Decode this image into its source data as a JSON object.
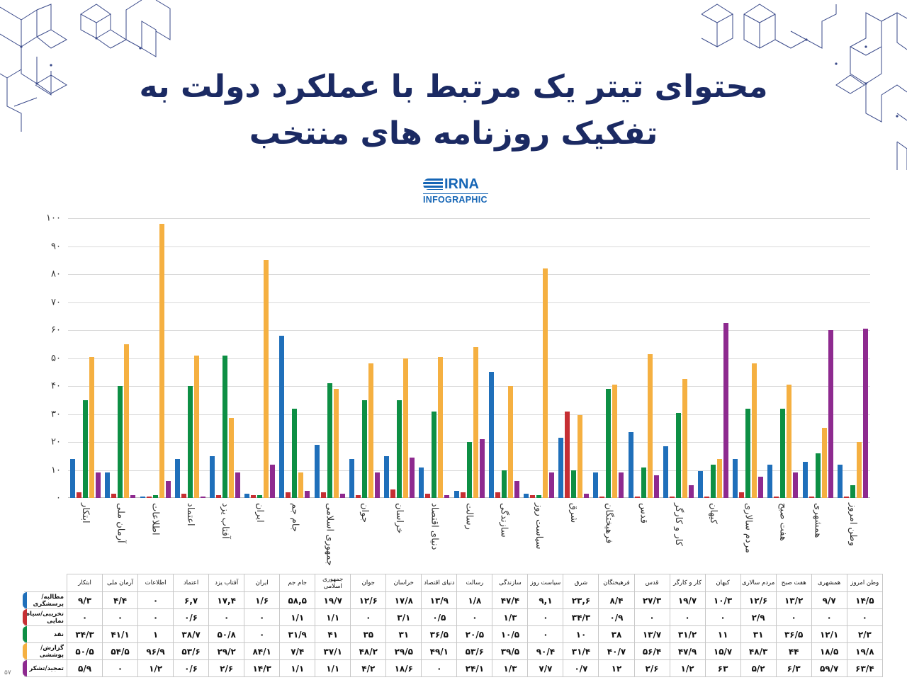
{
  "header": {
    "title_line1": "محتوای تیتر یک مرتبط با عملکرد دولت به",
    "title_line2": "تفکیک روزنامه های منتخب",
    "logo_brand": "IRNA",
    "logo_sub": "INFOGRAPHIC"
  },
  "colors": {
    "blue": "#1f6fba",
    "red": "#c62f33",
    "green": "#0d8f44",
    "orange": "#f5b041",
    "purple": "#8e2a8f",
    "title": "#1b2a63"
  },
  "chart_data": {
    "type": "bar",
    "title": "محتوای تیتر یک مرتبط با عملکرد دولت به تفکیک روزنامه های منتخب",
    "xlabel": "",
    "ylabel": "",
    "ylim": [
      0,
      100
    ],
    "yticks": [
      "۰",
      "۱۰",
      "۲۰",
      "۳۰",
      "۴۰",
      "۵۰",
      "۶۰",
      "۷۰",
      "۸۰",
      "۹۰",
      "۱۰۰"
    ],
    "grid": true,
    "legend_position": "table-row-markers",
    "categories": [
      "ابتکار",
      "آرمان ملی",
      "اطلاعات",
      "اعتماد",
      "آفتاب یزد",
      "ایران",
      "جام جم",
      "جمهوری اسلامی",
      "جوان",
      "خراسان",
      "دنیای اقتصاد",
      "رسالت",
      "سازندگی",
      "سیاست روز",
      "شرق",
      "فرهیختگان",
      "قدس",
      "کار و کارگر",
      "کیهان",
      "مردم سالاری",
      "هفت صبح",
      "همشهری",
      "وطن امروز"
    ],
    "series": [
      {
        "name": "مطالبه/پرسشگری",
        "color": "#1f6fba",
        "values": [
          14,
          9,
          0.5,
          14,
          15,
          1.5,
          58,
          19,
          14,
          15,
          11,
          2.5,
          45,
          1.5,
          21.5,
          9,
          23.5,
          18.5,
          9.5,
          14,
          12,
          13,
          12
        ]
      },
      {
        "name": "تخریبی/سیاه نمایی",
        "color": "#c62f33",
        "values": [
          2,
          1.5,
          0.5,
          1.5,
          1,
          1,
          2,
          2,
          1,
          3,
          1.5,
          2,
          2,
          1,
          31,
          0.5,
          0.5,
          0.5,
          0.5,
          2,
          0.5,
          0.5,
          0.5
        ]
      },
      {
        "name": "نقد",
        "color": "#0d8f44",
        "values": [
          35,
          40,
          1,
          40,
          51,
          1,
          32,
          41,
          35,
          35,
          31,
          20,
          10,
          1,
          10,
          39,
          11,
          30.5,
          12,
          32,
          32,
          16,
          4.5
        ]
      },
      {
        "name": "گزارش/پوششی",
        "color": "#f5b041",
        "values": [
          50.5,
          55,
          98,
          51,
          28.5,
          85,
          9,
          39,
          48,
          50,
          50.5,
          54,
          40,
          82,
          29.5,
          40.5,
          51.5,
          42.5,
          14,
          48,
          40.5,
          25,
          20
        ]
      },
      {
        "name": "تمجید/تشکر",
        "color": "#8e2a8f",
        "values": [
          9,
          1,
          6,
          0.5,
          9,
          12,
          2.5,
          1.5,
          9,
          14.5,
          1,
          21,
          6,
          9,
          1.5,
          9,
          8,
          4.5,
          62.5,
          7.5,
          9,
          60,
          60.5
        ]
      }
    ]
  },
  "table": {
    "headers_rtl": [
      "وطن امروز",
      "همشهری",
      "هفت صبح",
      "مردم سالاری",
      "کیهان",
      "کار و کارگر",
      "قدس",
      "فرهیختگان",
      "شرق",
      "سیاست روز",
      "سازندگی",
      "رسالت",
      "دنیای اقتصاد",
      "خراسان",
      "جوان",
      "جمهوری اسلامی",
      "جام جم",
      "ایران",
      "آفتاب یزد",
      "اعتماد",
      "اطلاعات",
      "آرمان ملی",
      "ابتکار"
    ],
    "rows": [
      {
        "label": "مطالبه/پرسشگری",
        "color": "#1f6fba",
        "values_ltr": [
          "۹/۳",
          "۴/۴",
          "۰",
          "۶,۷",
          "۱۷,۴",
          "۱/۶",
          "۵۸,۵",
          "۱۹/۷",
          "۱۲/۶",
          "۱۷/۸",
          "۱۳/۹",
          "۱/۸",
          "۴۷/۴",
          "۹,۱",
          "۲۳,۶",
          "۸/۴",
          "۲۷/۳",
          "۱۹/۷",
          "۱۰/۳",
          "۱۲/۶",
          "۱۳/۲",
          "۹/۷",
          "۱۴/۵"
        ]
      },
      {
        "label": "تخریبی/سیاه نمایی",
        "color": "#c62f33",
        "values_ltr": [
          "۰",
          "۰",
          "۰",
          "۰/۶",
          "۰",
          "۰",
          "۱/۱",
          "۱/۱",
          "۰",
          "۳/۱",
          "۰/۵",
          "۰",
          "۱/۳",
          "۰",
          "۳۴/۳",
          "۰/۹",
          "۰",
          "۰",
          "۰",
          "۲/۹",
          "۰",
          "۰",
          "۰"
        ]
      },
      {
        "label": "نقد",
        "color": "#0d8f44",
        "values_ltr": [
          "۳۴/۳",
          "۴۱/۱",
          "۱",
          "۳۸/۷",
          "۵۰/۸",
          "۰",
          "۳۱/۹",
          "۴۱",
          "۳۵",
          "۳۱",
          "۳۶/۵",
          "۲۰/۵",
          "۱۰/۵",
          "۰",
          "۱۰",
          "۳۸",
          "۱۳/۷",
          "۳۱/۲",
          "۱۱",
          "۳۱",
          "۳۶/۵",
          "۱۲/۱",
          "۲/۳"
        ]
      },
      {
        "label": "گزارش/پوششی",
        "color": "#f5b041",
        "values_ltr": [
          "۵۰/۵",
          "۵۴/۵",
          "۹۶/۹",
          "۵۳/۶",
          "۲۹/۲",
          "۸۴/۱",
          "۷/۴",
          "۳۷/۱",
          "۴۸/۲",
          "۲۹/۵",
          "۴۹/۱",
          "۵۳/۶",
          "۳۹/۵",
          "۹۰/۴",
          "۳۱/۴",
          "۴۰/۷",
          "۵۶/۴",
          "۴۷/۹",
          "۱۵/۷",
          "۴۸/۳",
          "۴۴",
          "۱۸/۵",
          "۱۹/۸"
        ]
      },
      {
        "label": "تمجید/تشکر",
        "color": "#8e2a8f",
        "values_ltr": [
          "۵/۹",
          "۰",
          "۱/۲",
          "۰/۶",
          "۲/۶",
          "۱۴/۳",
          "۱/۱",
          "۱/۱",
          "۴/۲",
          "۱۸/۶",
          "۰",
          "۲۴/۱",
          "۱/۳",
          "۷/۷",
          "۰/۷",
          "۱۲",
          "۲/۶",
          "۱/۲",
          "۶۳",
          "۵/۲",
          "۶/۳",
          "۵۹/۷",
          "۶۳/۴"
        ]
      }
    ]
  },
  "footer": {
    "page_number": "۵۷"
  }
}
